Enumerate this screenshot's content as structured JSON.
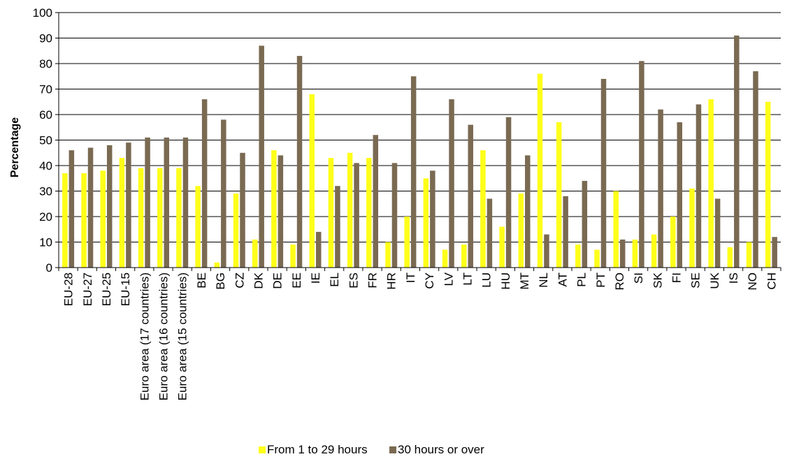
{
  "colors": {
    "series1": "#ffff1a",
    "series2": "#7a6a52",
    "grid": "#000000",
    "background": "#ffffff"
  },
  "chart_data": {
    "type": "bar",
    "title": "",
    "xlabel": "",
    "ylabel": "Percentage",
    "ylim": [
      0,
      100
    ],
    "yticks": [
      0,
      10,
      20,
      30,
      40,
      50,
      60,
      70,
      80,
      90,
      100
    ],
    "grid": true,
    "legend_position": "bottom",
    "categories": [
      "EU-28",
      "EU-27",
      "EU-25",
      "EU-15",
      "Euro area (17 countries)",
      "Euro area (16 countries)",
      "Euro area (15 countries)",
      "BE",
      "BG",
      "CZ",
      "DK",
      "DE",
      "EE",
      "IE",
      "EL",
      "ES",
      "FR",
      "HR",
      "IT",
      "CY",
      "LV",
      "LT",
      "LU",
      "HU",
      "MT",
      "NL",
      "AT",
      "PL",
      "PT",
      "RO",
      "SI",
      "SK",
      "FI",
      "SE",
      "UK",
      "IS",
      "NO",
      "CH"
    ],
    "series": [
      {
        "name": "From 1 to 29 hours",
        "values": [
          37,
          37,
          38,
          43,
          39,
          39,
          39,
          32,
          2,
          29,
          11,
          46,
          9,
          68,
          43,
          45,
          43,
          10,
          20,
          35,
          7,
          9,
          46,
          16,
          29,
          76,
          57,
          9,
          7,
          30,
          11,
          13,
          20,
          31,
          66,
          8,
          10,
          65
        ]
      },
      {
        "name": "30 hours or over",
        "values": [
          46,
          47,
          48,
          49,
          51,
          51,
          51,
          66,
          58,
          45,
          87,
          44,
          83,
          14,
          32,
          41,
          52,
          41,
          75,
          38,
          66,
          56,
          27,
          59,
          44,
          13,
          28,
          34,
          74,
          11,
          81,
          62,
          57,
          64,
          27,
          91,
          77,
          12
        ]
      }
    ]
  }
}
